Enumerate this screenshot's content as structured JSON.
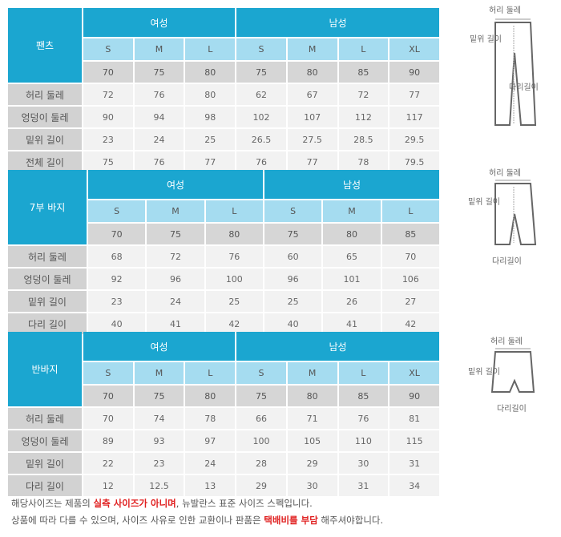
{
  "tables": [
    {
      "title": "팬츠",
      "groups": [
        {
          "label": "여성",
          "span": 3
        },
        {
          "label": "남성",
          "span": 4
        }
      ],
      "sizes": [
        "S",
        "M",
        "L",
        "S",
        "M",
        "L",
        "XL"
      ],
      "waist": [
        "70",
        "75",
        "80",
        "75",
        "80",
        "85",
        "90"
      ],
      "rows": [
        {
          "label": "허리 둘레",
          "values": [
            "72",
            "76",
            "80",
            "62",
            "67",
            "72",
            "77"
          ]
        },
        {
          "label": "엉덩이 둘레",
          "values": [
            "90",
            "94",
            "98",
            "102",
            "107",
            "112",
            "117"
          ]
        },
        {
          "label": "밑위 길이",
          "values": [
            "23",
            "24",
            "25",
            "26.5",
            "27.5",
            "28.5",
            "29.5"
          ]
        },
        {
          "label": "전체 길이",
          "values": [
            "75",
            "76",
            "77",
            "76",
            "77",
            "78",
            "79.5"
          ]
        }
      ]
    },
    {
      "title": "7부 바지",
      "groups": [
        {
          "label": "여성",
          "span": 3
        },
        {
          "label": "남성",
          "span": 3
        }
      ],
      "sizes": [
        "S",
        "M",
        "L",
        "S",
        "M",
        "L"
      ],
      "waist": [
        "70",
        "75",
        "80",
        "75",
        "80",
        "85"
      ],
      "rows": [
        {
          "label": "허리 둘레",
          "values": [
            "68",
            "72",
            "76",
            "60",
            "65",
            "70"
          ]
        },
        {
          "label": "엉덩이 둘레",
          "values": [
            "92",
            "96",
            "100",
            "96",
            "101",
            "106"
          ]
        },
        {
          "label": "밑위 길이",
          "values": [
            "23",
            "24",
            "25",
            "25",
            "26",
            "27"
          ]
        },
        {
          "label": "다리 길이",
          "values": [
            "40",
            "41",
            "42",
            "40",
            "41",
            "42"
          ]
        }
      ]
    },
    {
      "title": "반바지",
      "groups": [
        {
          "label": "여성",
          "span": 3
        },
        {
          "label": "남성",
          "span": 4
        }
      ],
      "sizes": [
        "S",
        "M",
        "L",
        "S",
        "M",
        "L",
        "XL"
      ],
      "waist": [
        "70",
        "75",
        "80",
        "75",
        "80",
        "85",
        "90"
      ],
      "rows": [
        {
          "label": "허리 둘레",
          "values": [
            "70",
            "74",
            "78",
            "66",
            "71",
            "76",
            "81"
          ]
        },
        {
          "label": "엉덩이 둘레",
          "values": [
            "89",
            "93",
            "97",
            "100",
            "105",
            "110",
            "115"
          ]
        },
        {
          "label": "밑위 길이",
          "values": [
            "22",
            "23",
            "24",
            "28",
            "29",
            "30",
            "31"
          ]
        },
        {
          "label": "다리 길이",
          "values": [
            "12",
            "12.5",
            "13",
            "29",
            "30",
            "31",
            "34"
          ]
        }
      ]
    }
  ],
  "diagrams": [
    {
      "waist": "허리 둘레",
      "rise": "밑위 길이",
      "leg": "다리길이"
    },
    {
      "waist": "허리 둘레",
      "rise": "밑위 길이",
      "leg": "다리길이"
    },
    {
      "waist": "허리 둘레",
      "rise": "밑위 길이",
      "leg": "다리길이"
    }
  ],
  "notes": {
    "line1": [
      {
        "t": "해당사이즈는 제품의 ",
        "red": false
      },
      {
        "t": "실측 사이즈가 아니며",
        "red": true
      },
      {
        "t": ", 뉴발란스 표준 사이즈 스펙입니다.",
        "red": false
      }
    ],
    "line2": [
      {
        "t": "상품에 따라 다를 수 있으며, 사이즈 사유로 인한 교환이나 판품은 ",
        "red": false
      },
      {
        "t": "택배비를 부담",
        "red": true
      },
      {
        "t": " 해주셔야합니다.",
        "red": false
      }
    ]
  },
  "colors": {
    "header": "#1ba6d0",
    "size_row": "#a5dcf0",
    "highlight": "#e02020"
  }
}
